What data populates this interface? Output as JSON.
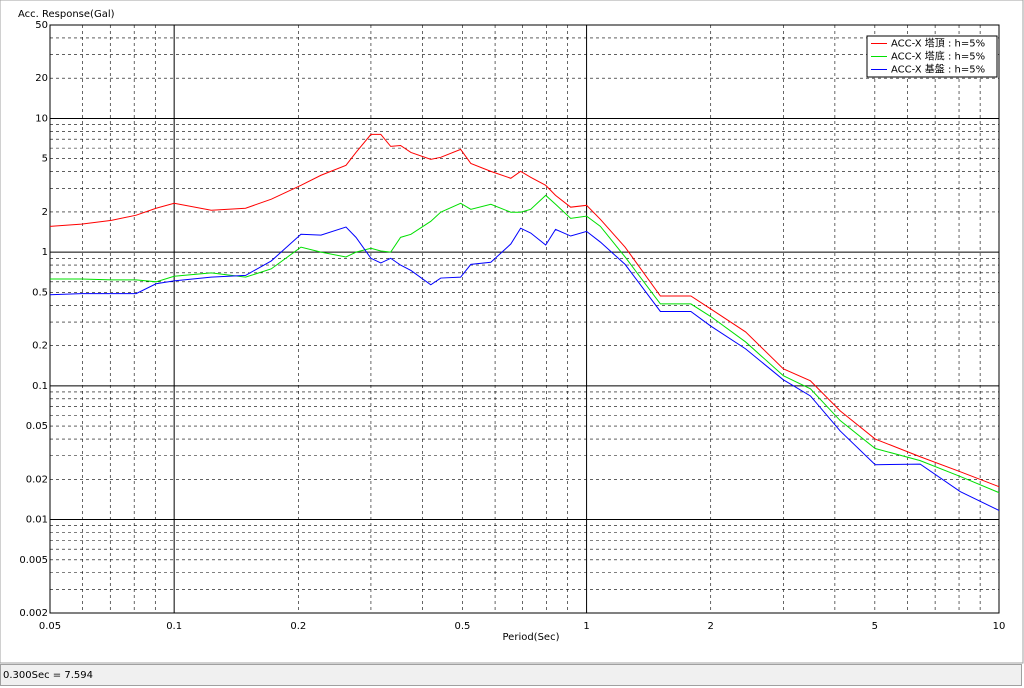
{
  "chart_data": {
    "type": "line",
    "title": "Acc. Response(Gal)",
    "x_label": "Period(Sec)",
    "log_x": true,
    "log_y": true,
    "grid": true,
    "minor_grid": true,
    "legend": "upper right",
    "xlim": [
      0.05,
      10
    ],
    "xticks": [
      0.05,
      0.1,
      0.2,
      0.5,
      1,
      2,
      5,
      10
    ],
    "ylim": [
      0.002,
      50
    ],
    "yticks": [
      0.002,
      0.005,
      0.01,
      0.02,
      0.05,
      0.1,
      0.2,
      0.5,
      1,
      2,
      5,
      10,
      20,
      50
    ],
    "x": [
      0.05,
      0.0596,
      0.0704,
      0.0809,
      0.0904,
      0.1,
      0.123,
      0.149,
      0.172,
      0.203,
      0.227,
      0.261,
      0.276,
      0.3,
      0.317,
      0.335,
      0.354,
      0.375,
      0.419,
      0.443,
      0.495,
      0.524,
      0.586,
      0.655,
      0.692,
      0.732,
      0.796,
      0.841,
      0.915,
      1,
      1.08,
      1.24,
      1.51,
      1.79,
      2.0,
      2.43,
      3.0,
      3.49,
      4.12,
      5.01,
      6.44,
      8.05,
      10
    ],
    "series": [
      {
        "name": "ACC-X 塔頂 : h=5%",
        "color": "#ff0000",
        "values": [
          1.56,
          1.62,
          1.73,
          1.89,
          2.13,
          2.32,
          2.06,
          2.13,
          2.49,
          3.16,
          3.76,
          4.46,
          5.57,
          7.594,
          7.6,
          6.18,
          6.28,
          5.57,
          4.94,
          5.12,
          5.87,
          4.61,
          4.02,
          3.57,
          4.02,
          3.63,
          3.16,
          2.66,
          2.17,
          2.24,
          1.76,
          1.09,
          0.47,
          0.47,
          0.376,
          0.253,
          0.134,
          0.109,
          0.065,
          0.04,
          0.0295,
          0.0228,
          0.0176
        ]
      },
      {
        "name": "ACC-X 塔底 : h=5%",
        "color": "#00e000",
        "values": [
          0.63,
          0.63,
          0.62,
          0.62,
          0.6,
          0.66,
          0.7,
          0.65,
          0.75,
          1.09,
          1.0,
          0.92,
          1.0,
          1.07,
          1.02,
          1.0,
          1.29,
          1.36,
          1.7,
          1.99,
          2.32,
          2.09,
          2.28,
          1.99,
          1.99,
          2.09,
          2.66,
          2.28,
          1.79,
          1.86,
          1.56,
          0.92,
          0.41,
          0.41,
          0.33,
          0.213,
          0.119,
          0.095,
          0.055,
          0.034,
          0.0276,
          0.021,
          0.0159
        ]
      },
      {
        "name": "ACC-X 基盤 : h=5%",
        "color": "#0000ff",
        "values": [
          0.48,
          0.49,
          0.49,
          0.49,
          0.58,
          0.61,
          0.65,
          0.67,
          0.86,
          1.36,
          1.34,
          1.54,
          1.29,
          0.9,
          0.83,
          0.9,
          0.8,
          0.73,
          0.57,
          0.64,
          0.65,
          0.81,
          0.84,
          1.15,
          1.51,
          1.39,
          1.13,
          1.48,
          1.32,
          1.43,
          1.19,
          0.81,
          0.36,
          0.36,
          0.28,
          0.189,
          0.111,
          0.084,
          0.046,
          0.0257,
          0.026,
          0.0162,
          0.0117
        ]
      }
    ]
  },
  "status": "0.300Sec = 7.594"
}
